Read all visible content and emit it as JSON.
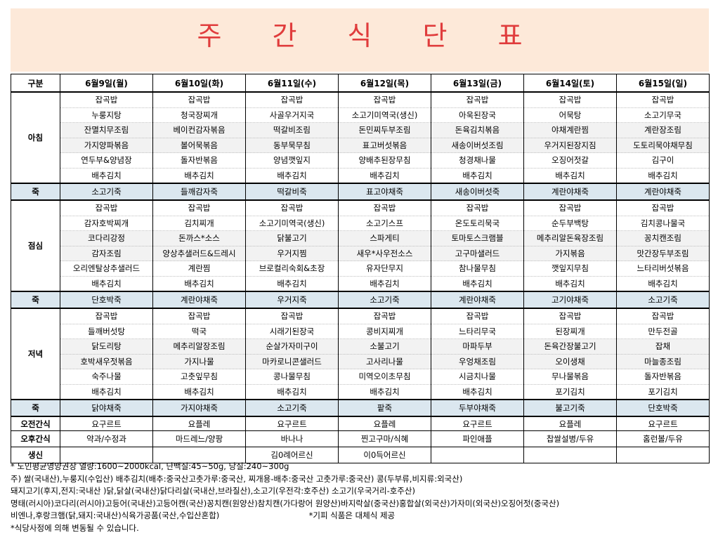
{
  "title": "주 간 식 단 표",
  "header": {
    "corner": "구분",
    "days": [
      "6월9일(월)",
      "6월10일(화)",
      "6월11일(수)",
      "6월12일(목)",
      "6월13일(금)",
      "6월14일(토)",
      "6월15일(일)"
    ]
  },
  "breakfast": {
    "label": "아침",
    "days": [
      [
        "잡곡밥",
        "누룽지탕",
        "잔멸치무조림",
        "가지양파볶음",
        "연두부&양념장",
        "배추김치"
      ],
      [
        "잡곡밥",
        "청국장찌개",
        "베이컨감자볶음",
        "볼어묵볶음",
        "돌자반볶음",
        "배추김치"
      ],
      [
        "잡곡밥",
        "사골우거지국",
        "떡갈비조림",
        "동부묵무침",
        "양념깻잎지",
        "배추김치"
      ],
      [
        "잡곡밥",
        "소고기미역국(생신)",
        "돈민찌두부조림",
        "표고버섯볶음",
        "양배추된장무침",
        "배추김치"
      ],
      [
        "잡곡밥",
        "아욱된장국",
        "돈육김치볶음",
        "새송이버섯조림",
        "청경채나물",
        "배추김치"
      ],
      [
        "잡곡밥",
        "어묵탕",
        "야채계란찜",
        "우거지된장지짐",
        "오징어젓갈",
        "배추김치"
      ],
      [
        "잡곡밥",
        "소고기무국",
        "계란장조림",
        "도토리묵야채무침",
        "김구이",
        "배추김치"
      ]
    ]
  },
  "porridge1": {
    "label": "죽",
    "items": [
      "소고기죽",
      "들깨감자죽",
      "떡갈비죽",
      "표고야채죽",
      "새송이버섯죽",
      "계란야채죽",
      "계란야채죽"
    ]
  },
  "lunch": {
    "label": "점심",
    "days": [
      [
        "잡곡밥",
        "감자호박찌개",
        "코다리강정",
        "감자조림",
        "오리엔탈상추샐러드",
        "배추김치"
      ],
      [
        "잡곡밥",
        "김치찌개",
        "돈까스*소스",
        "양상추샐러드&드레시",
        "계란찜",
        "배추김치"
      ],
      [
        "잡곡밥",
        "소고기미역국(생신)",
        "닭불고기",
        "우거지찜",
        "브로컬리숙회&초장",
        "배추김치"
      ],
      [
        "잡곡밥",
        "소고기스프",
        "스파게티",
        "새우*사우전소스",
        "유자단무지",
        "배추김치"
      ],
      [
        "잡곡밥",
        "온도토리묵국",
        "토마토스크램블",
        "고구마샐러드",
        "참나물무침",
        "배추김치"
      ],
      [
        "잡곡밥",
        "순두부백탕",
        "메추리알돈육장조림",
        "가지볶음",
        "깻잎지무침",
        "배추김치"
      ],
      [
        "잡곡밥",
        "김치콩나물국",
        "꽁치캔조림",
        "맛간장두부조림",
        "느타리버섯볶음",
        "배추김치"
      ]
    ]
  },
  "porridge2": {
    "label": "죽",
    "items": [
      "단호박죽",
      "계란야채죽",
      "우거지죽",
      "소고기죽",
      "계란야채죽",
      "고기야채죽",
      "소고기죽"
    ]
  },
  "dinner": {
    "label": "저녁",
    "days": [
      [
        "잡곡밥",
        "들깨버섯탕",
        "닭도리탕",
        "호박새우젓볶음",
        "숙주나물",
        "배추김치"
      ],
      [
        "잡곡밥",
        "떡국",
        "메추리알장조림",
        "가지나물",
        "고춧잎무침",
        "배추김치"
      ],
      [
        "잡곡밥",
        "시래기된장국",
        "순살가자미구이",
        "마카로니콘샐러드",
        "콩나물무침",
        "배추김치"
      ],
      [
        "잡곡밥",
        "콩비지찌개",
        "소불고기",
        "고사리나물",
        "미역오이초무침",
        "배추김치"
      ],
      [
        "잡곡밥",
        "느타리무국",
        "마파두부",
        "우엉채조림",
        "시금치나물",
        "배추김치"
      ],
      [
        "잡곡밥",
        "된장찌개",
        "돈육간장불고기",
        "오이생채",
        "무나물볶음",
        "포기김치"
      ],
      [
        "잡곡밥",
        "만두전골",
        "잡채",
        "마늘종조림",
        "돌자반볶음",
        "포기김치"
      ]
    ]
  },
  "porridge3": {
    "label": "죽",
    "items": [
      "닭야채죽",
      "가지야채죽",
      "소고기죽",
      "팥죽",
      "두부야채죽",
      "불고기죽",
      "단호박죽"
    ]
  },
  "am_snack": {
    "label": "오전간식",
    "items": [
      "요구르트",
      "요플레",
      "요구르트",
      "요플레",
      "요구르트",
      "요플레",
      "요구르트"
    ]
  },
  "pm_snack": {
    "label": "오후간식",
    "items": [
      "약과/수정과",
      "마드레느/양팡",
      "바나나",
      "찐고구마/식혜",
      "파인애플",
      "찹쌀설병/두유",
      "홈런볼/두유"
    ]
  },
  "birthday": {
    "label": "생신",
    "items": [
      "",
      "",
      "김0례어르신",
      "이0득어르신",
      "",
      "",
      ""
    ]
  },
  "notes": {
    "line1": "* 노인평균영양권장 열량:1600~2000kcal, 단백질:45~50g, 당질:240~300g",
    "line2": "주) 쌀(국내산),누룽지(수입산) 배추김치(배추:중국산고춧가루:중국산, 찌개용-배추:중국산 고춧가루:중국산) 콩(두부류,비지류:외국산)",
    "line3": "돼지고기(후지,전지:국내산 )닭,닭살(국내산)닭다리살(국내산,브라질산),소고기(우전각:호주산) 소고기(우국거리-호주산)",
    "line4": "명태(러시아)코다리(러시아)고등어(국내산)고등어캔(국산)꽁치캔(원양산)참치캔(가다랑어 원양산)바지락살(중국산)홍합살(외국산)가자미(외국산)오징어젓(중국산)",
    "line5a": "비엔나,후랑크햄(닭,돼지:국내산)식육가공품(국산,수입산혼합)",
    "line5b": "*기피 식품은 대체식 제공",
    "line6": "*식당사정에 의해 변동될 수 있습니다."
  }
}
